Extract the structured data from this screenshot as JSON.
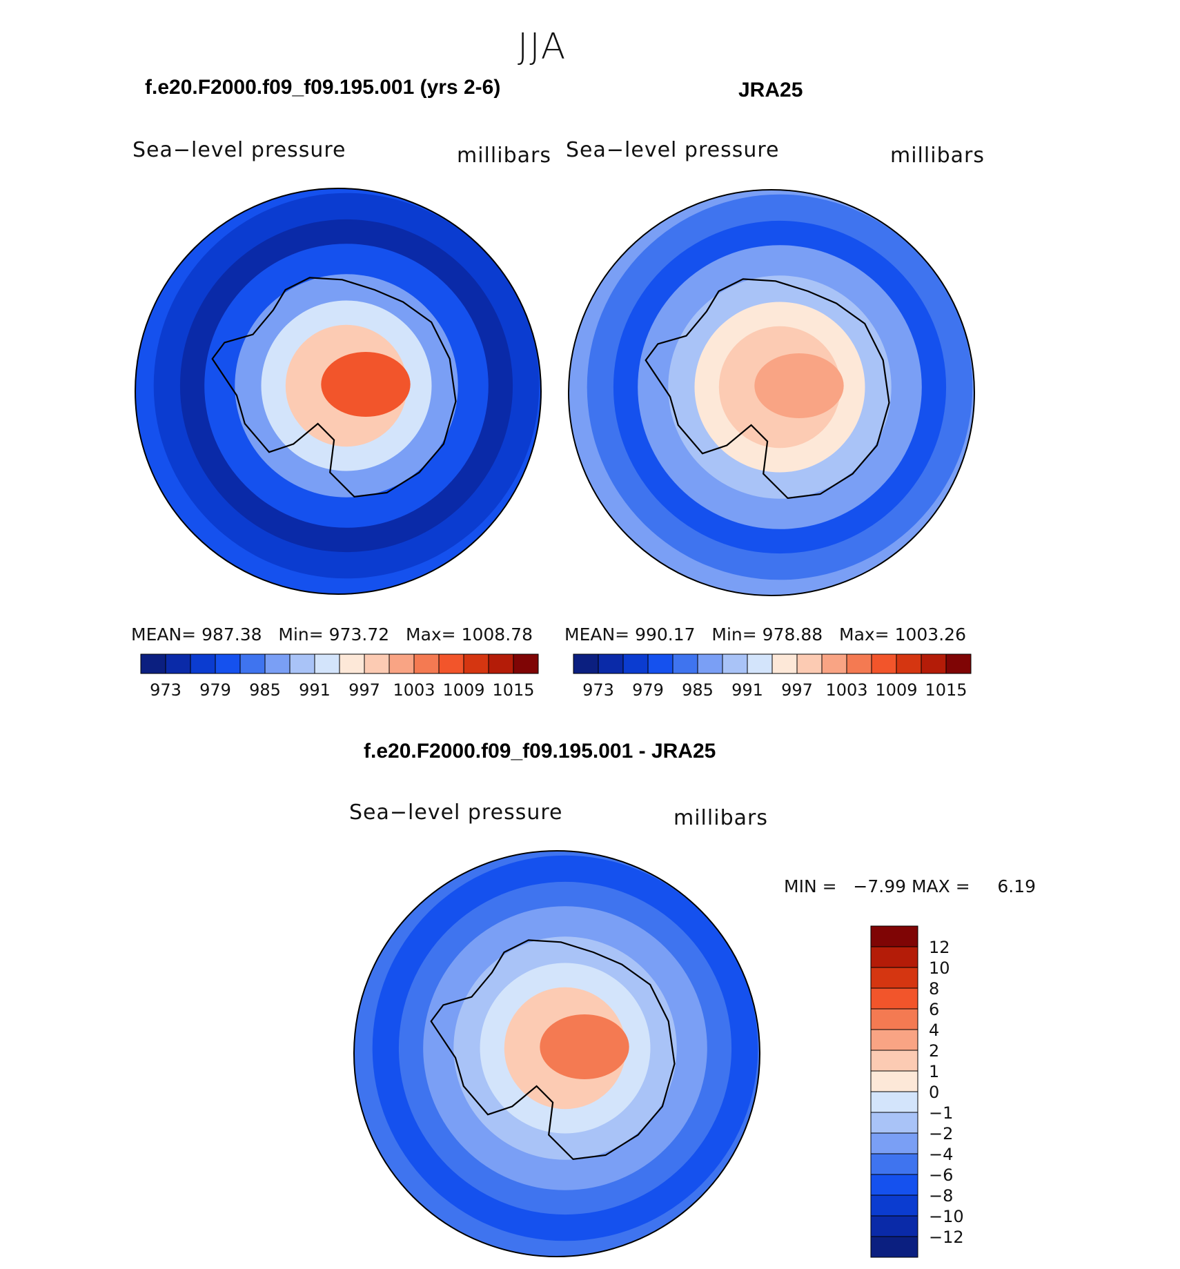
{
  "page_title": "JJA",
  "palette": [
    "#0b1f80",
    "#0a2aa8",
    "#0b3cd0",
    "#1551ee",
    "#3f74ef",
    "#7a9ff5",
    "#a9c3f7",
    "#d3e4fb",
    "#fde8d8",
    "#fccbb3",
    "#f9a484",
    "#f47a52",
    "#f2552b",
    "#d53611",
    "#b41c08",
    "#7f0505"
  ],
  "chart_data": [
    {
      "type": "polar-contour-map",
      "title": "f.e20.F2000.f09_f09.195.001 (yrs 2-6)",
      "variable": "Sea−level pressure",
      "units": "millibars",
      "stats": {
        "mean_label": "MEAN=",
        "mean": "987.38",
        "min_label": "Min=",
        "min": "973.72",
        "max_label": "Max=",
        "max": "1008.78"
      },
      "colorbar_ticks": [
        "973",
        "979",
        "985",
        "991",
        "997",
        "1003",
        "1009",
        "1015"
      ],
      "field_levels": {
        "center": 12,
        "rings": [
          3,
          2,
          1,
          3,
          5,
          7,
          9
        ]
      }
    },
    {
      "type": "polar-contour-map",
      "title": "JRA25",
      "variable": "Sea−level pressure",
      "units": "millibars",
      "stats": {
        "mean_label": "MEAN=",
        "mean": "990.17",
        "min_label": "Min=",
        "min": "978.88",
        "max_label": "Max=",
        "max": "1003.26"
      },
      "colorbar_ticks": [
        "973",
        "979",
        "985",
        "991",
        "997",
        "1003",
        "1009",
        "1015"
      ],
      "field_levels": {
        "center": 10,
        "rings": [
          5,
          4,
          3,
          5,
          6,
          8,
          9
        ]
      }
    },
    {
      "type": "polar-contour-map",
      "title": "f.e20.F2000.f09_f09.195.001 - JRA25",
      "variable": "Sea−level pressure",
      "units": "millibars",
      "range": {
        "min_label": "MIN =",
        "min": "−7.99",
        "max_label": "MAX =",
        "max": "6.19"
      },
      "colorbar_levels": [
        "12",
        "10",
        "8",
        "6",
        "4",
        "2",
        "1",
        "0",
        "−1",
        "−2",
        "−4",
        "−6",
        "−8",
        "−10",
        "−12"
      ],
      "field_levels": {
        "center": 11,
        "rings": [
          4,
          3,
          4,
          5,
          6,
          7,
          9
        ]
      }
    }
  ]
}
